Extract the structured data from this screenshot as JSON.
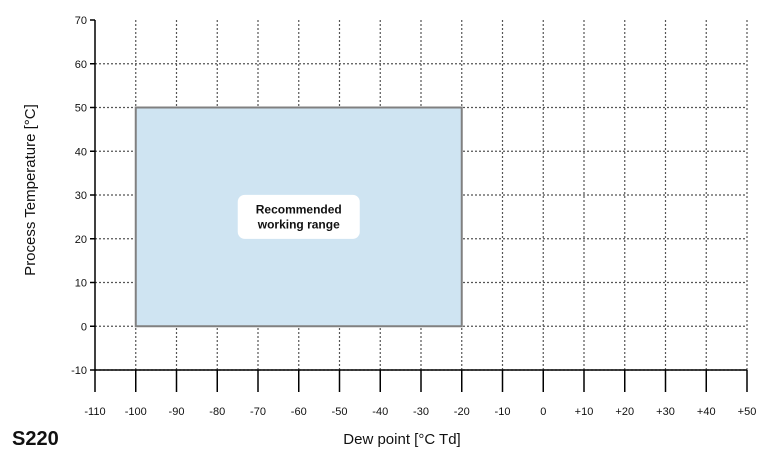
{
  "chart_data": {
    "type": "area",
    "title": "",
    "model": "S220",
    "xlabel": "Dew point [°C Td]",
    "ylabel": "Process Temperature [°C]",
    "xlim": [
      -110,
      50
    ],
    "ylim": [
      -10,
      70
    ],
    "x_ticks": [
      "-110",
      "-100",
      "-90",
      "-80",
      "-70",
      "-60",
      "-50",
      "-40",
      "-30",
      "-20",
      "-10",
      "0",
      "+10",
      "+20",
      "+30",
      "+40",
      "+50"
    ],
    "y_ticks": [
      "70",
      "60",
      "50",
      "40",
      "30",
      "20",
      "10",
      "0",
      "-10"
    ],
    "grid": true,
    "regions": [
      {
        "label_lines": [
          "Recommended",
          "working range"
        ],
        "x_range": [
          -100,
          -20
        ],
        "y_range": [
          0,
          50
        ],
        "fill": "#cfe4f2",
        "stroke": "#808080"
      }
    ]
  }
}
